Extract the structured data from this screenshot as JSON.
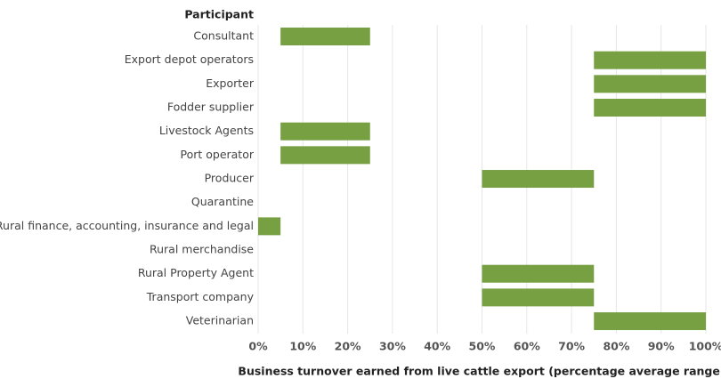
{
  "chart_data": {
    "type": "range_bar",
    "y_label": "Participant",
    "x_label": "Business turnover earned from live cattle export (percentage average range)",
    "categories": [
      "Consultant",
      "Export depot operators",
      "Exporter",
      "Fodder supplier",
      "Livestock Agents",
      "Port operator",
      "Producer",
      "Quarantine",
      "Rural finance, accounting, insurance and legal",
      "Rural merchandise",
      "Rural Property Agent",
      "Transport company",
      "Veterinarian"
    ],
    "low": [
      5,
      75,
      75,
      75,
      5,
      5,
      50,
      null,
      0,
      null,
      50,
      50,
      75
    ],
    "high": [
      25,
      100,
      100,
      100,
      25,
      25,
      75,
      null,
      5,
      null,
      75,
      75,
      100
    ],
    "color": "#77a043",
    "xlim": [
      0,
      100
    ],
    "xticks": [
      {
        "value": 0,
        "label": "0%"
      },
      {
        "value": 10,
        "label": "10%"
      },
      {
        "value": 20,
        "label": "20%"
      },
      {
        "value": 30,
        "label": "30%"
      },
      {
        "value": 40,
        "label": "40%"
      },
      {
        "value": 50,
        "label": "50%"
      },
      {
        "value": 60,
        "label": "60%"
      },
      {
        "value": 70,
        "label": "70%"
      },
      {
        "value": 80,
        "label": "80%"
      },
      {
        "value": 90,
        "label": "90%"
      },
      {
        "value": 100,
        "label": "100%"
      }
    ],
    "grid": true
  }
}
